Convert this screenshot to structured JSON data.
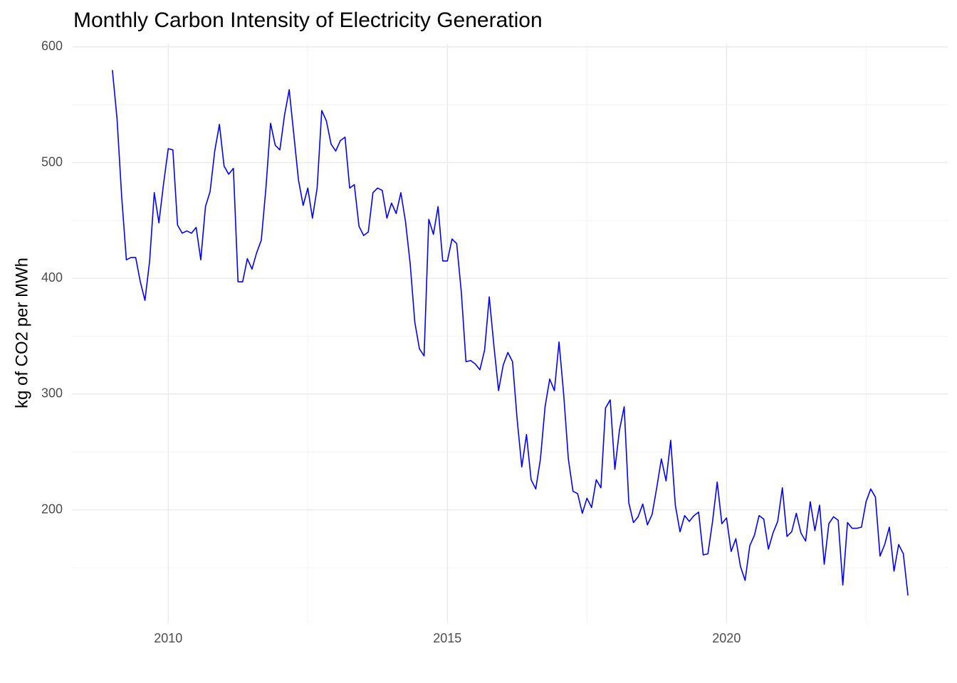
{
  "chart_data": {
    "type": "line",
    "title": "Monthly Carbon Intensity of Electricity Generation",
    "y_label": "kg of CO2 per MWh",
    "x": [
      2009.0,
      2009.083,
      2009.167,
      2009.25,
      2009.333,
      2009.417,
      2009.5,
      2009.583,
      2009.667,
      2009.75,
      2009.833,
      2009.917,
      2010.0,
      2010.083,
      2010.167,
      2010.25,
      2010.333,
      2010.417,
      2010.5,
      2010.583,
      2010.667,
      2010.75,
      2010.833,
      2010.917,
      2011.0,
      2011.083,
      2011.167,
      2011.25,
      2011.333,
      2011.417,
      2011.5,
      2011.583,
      2011.667,
      2011.75,
      2011.833,
      2011.917,
      2012.0,
      2012.083,
      2012.167,
      2012.25,
      2012.333,
      2012.417,
      2012.5,
      2012.583,
      2012.667,
      2012.75,
      2012.833,
      2012.917,
      2013.0,
      2013.083,
      2013.167,
      2013.25,
      2013.333,
      2013.417,
      2013.5,
      2013.583,
      2013.667,
      2013.75,
      2013.833,
      2013.917,
      2014.0,
      2014.083,
      2014.167,
      2014.25,
      2014.333,
      2014.417,
      2014.5,
      2014.583,
      2014.667,
      2014.75,
      2014.833,
      2014.917,
      2015.0,
      2015.083,
      2015.167,
      2015.25,
      2015.333,
      2015.417,
      2015.5,
      2015.583,
      2015.667,
      2015.75,
      2015.833,
      2015.917,
      2016.0,
      2016.083,
      2016.167,
      2016.25,
      2016.333,
      2016.417,
      2016.5,
      2016.583,
      2016.667,
      2016.75,
      2016.833,
      2016.917,
      2017.0,
      2017.083,
      2017.167,
      2017.25,
      2017.333,
      2017.417,
      2017.5,
      2017.583,
      2017.667,
      2017.75,
      2017.833,
      2017.917,
      2018.0,
      2018.083,
      2018.167,
      2018.25,
      2018.333,
      2018.417,
      2018.5,
      2018.583,
      2018.667,
      2018.75,
      2018.833,
      2018.917,
      2019.0,
      2019.083,
      2019.167,
      2019.25,
      2019.333,
      2019.417,
      2019.5,
      2019.583,
      2019.667,
      2019.75,
      2019.833,
      2019.917,
      2020.0,
      2020.083,
      2020.167,
      2020.25,
      2020.333,
      2020.417,
      2020.5,
      2020.583,
      2020.667,
      2020.75,
      2020.833,
      2020.917,
      2021.0,
      2021.083,
      2021.167,
      2021.25,
      2021.333,
      2021.417,
      2021.5,
      2021.583,
      2021.667,
      2021.75,
      2021.833,
      2021.917,
      2022.0,
      2022.083,
      2022.167,
      2022.25,
      2022.333,
      2022.417,
      2022.5,
      2022.583,
      2022.667,
      2022.75,
      2022.833,
      2022.917,
      2023.0,
      2023.083,
      2023.167,
      2023.25
    ],
    "series": [
      {
        "name": "Carbon intensity",
        "color": "#0000ff",
        "values": [
          580,
          538,
          470,
          416,
          418,
          418,
          397,
          381,
          415,
          474,
          448,
          482,
          512,
          511,
          446,
          439,
          441,
          439,
          444,
          416,
          462,
          475,
          510,
          533,
          497,
          490,
          495,
          397,
          397,
          417,
          408,
          422,
          433,
          478,
          534,
          515,
          511,
          541,
          563,
          524,
          485,
          463,
          478,
          452,
          478,
          545,
          536,
          516,
          510,
          519,
          522,
          478,
          481,
          445,
          437,
          440,
          474,
          478,
          476,
          452,
          465,
          456,
          474,
          449,
          413,
          362,
          339,
          333,
          451,
          438,
          462,
          415,
          415,
          434,
          430,
          388,
          328,
          329,
          326,
          321,
          338,
          384,
          342,
          303,
          325,
          336,
          328,
          278,
          237,
          265,
          226,
          218,
          244,
          289,
          313,
          303,
          345,
          300,
          244,
          216,
          214,
          197,
          210,
          202,
          226,
          219,
          288,
          295,
          235,
          269,
          289,
          206,
          189,
          194,
          205,
          187,
          196,
          219,
          244,
          225,
          260,
          204,
          181,
          195,
          190,
          195,
          198,
          161,
          162,
          190,
          224,
          188,
          193,
          164,
          175,
          151,
          139,
          169,
          178,
          195,
          192,
          166,
          180,
          190,
          219,
          177,
          181,
          197,
          180,
          173,
          207,
          182,
          204,
          153,
          188,
          194,
          191,
          135,
          189,
          184,
          184,
          185,
          207,
          218,
          211,
          160,
          170,
          185,
          147,
          170,
          162,
          126
        ]
      }
    ],
    "xlim": [
      2008.2875,
      2023.9625
    ],
    "xticks": [
      2010,
      2015,
      2020
    ],
    "minor_xticks": [
      2012.5,
      2017.5,
      2022.5
    ],
    "ylim": [
      102,
      603
    ],
    "yticks": [
      200,
      300,
      400,
      500,
      600
    ],
    "minor_yticks": [
      150,
      250,
      350,
      450,
      550
    ],
    "grid": true
  }
}
